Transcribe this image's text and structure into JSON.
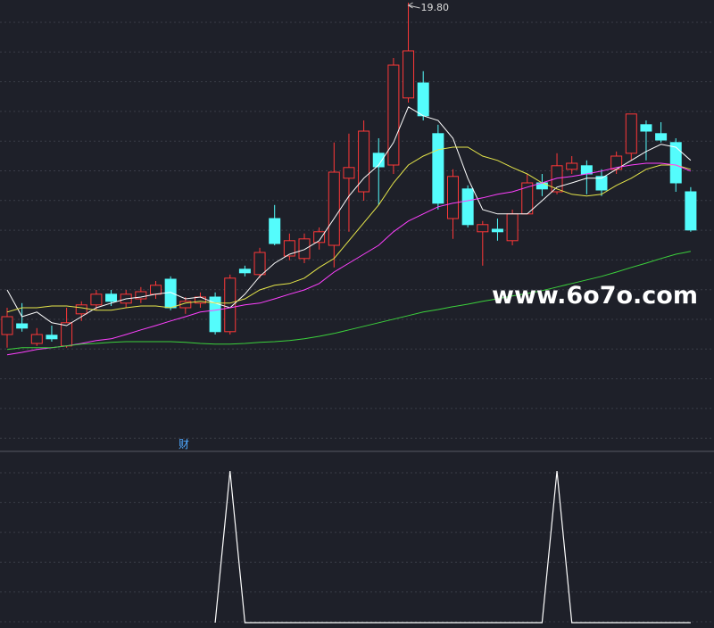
{
  "chart_data": [
    {
      "type": "candlestick",
      "annotation": "19.80",
      "watermark": "www.6o7o.com",
      "marker": "财",
      "up_color": "#ff3838",
      "down_color": "#54fcfc",
      "ylim": [
        7.25,
        19.875
      ],
      "grid": true,
      "open": [
        10.5,
        10.8,
        10.25,
        10.48,
        10.18,
        11.08,
        11.33,
        11.63,
        11.38,
        11.5,
        11.63,
        12.05,
        11.25,
        11.38,
        11.55,
        10.58,
        12.33,
        12.18,
        13.75,
        12.7,
        12.63,
        13.08,
        13.0,
        14.88,
        14.5,
        15.58,
        15.25,
        17.13,
        17.55,
        16.13,
        13.75,
        14.58,
        13.38,
        13.45,
        13.13,
        13.88,
        14.75,
        14.5,
        15.13,
        15.23,
        14.93,
        15.13,
        15.58,
        16.38,
        16.13,
        15.88,
        14.5
      ],
      "high": [
        11.25,
        11.38,
        10.68,
        10.75,
        11.25,
        11.43,
        11.75,
        11.75,
        11.75,
        11.83,
        12.0,
        12.13,
        11.55,
        11.68,
        11.68,
        12.18,
        12.43,
        12.93,
        14.13,
        13.33,
        13.33,
        13.5,
        15.88,
        16.13,
        16.5,
        16.0,
        18.25,
        19.8,
        17.88,
        16.38,
        15.13,
        14.68,
        13.68,
        13.75,
        14.0,
        15.0,
        15.0,
        15.58,
        15.5,
        15.38,
        15.13,
        15.63,
        16.68,
        16.5,
        16.45,
        16.0,
        14.63
      ],
      "low": [
        10.13,
        10.58,
        10.18,
        10.3,
        10.13,
        10.88,
        11.18,
        11.3,
        11.25,
        11.38,
        11.5,
        11.18,
        11.08,
        11.25,
        10.5,
        10.5,
        12.13,
        12.08,
        13.0,
        12.58,
        12.5,
        12.88,
        12.38,
        13.38,
        14.25,
        14.13,
        15.0,
        17.0,
        16.5,
        14.0,
        13.18,
        13.5,
        12.43,
        13.13,
        13.0,
        13.88,
        14.38,
        14.43,
        15.0,
        14.43,
        14.38,
        15.0,
        15.38,
        15.38,
        15.88,
        14.5,
        13.38
      ],
      "close": [
        11.0,
        10.68,
        10.5,
        10.38,
        10.83,
        11.33,
        11.63,
        11.43,
        11.63,
        11.7,
        11.88,
        11.25,
        11.43,
        11.55,
        10.58,
        12.08,
        12.23,
        12.8,
        13.05,
        13.13,
        13.18,
        13.38,
        15.05,
        15.18,
        16.2,
        15.2,
        18.05,
        18.45,
        16.63,
        14.18,
        14.93,
        13.58,
        13.58,
        13.38,
        13.88,
        14.75,
        14.58,
        15.23,
        15.3,
        15.0,
        14.55,
        15.5,
        16.68,
        16.2,
        15.95,
        14.75,
        13.43
      ],
      "series": [
        {
          "color": "#ffffff",
          "values": [
            11.75,
            11.0,
            11.13,
            10.83,
            10.75,
            11.0,
            11.25,
            11.38,
            11.5,
            11.55,
            11.63,
            11.68,
            11.5,
            11.55,
            11.38,
            11.25,
            11.63,
            12.13,
            12.5,
            12.75,
            12.88,
            13.13,
            13.75,
            14.38,
            14.88,
            15.25,
            15.88,
            16.88,
            16.63,
            16.5,
            16.0,
            14.88,
            14.0,
            13.88,
            13.88,
            13.88,
            14.25,
            14.63,
            14.75,
            14.88,
            14.88,
            15.13,
            15.38,
            15.63,
            15.83,
            15.75,
            15.38
          ]
        },
        {
          "color": "#e6e64a",
          "values": [
            11.13,
            11.25,
            11.25,
            11.3,
            11.3,
            11.25,
            11.18,
            11.18,
            11.25,
            11.3,
            11.3,
            11.25,
            11.38,
            11.43,
            11.38,
            11.38,
            11.5,
            11.75,
            11.88,
            11.93,
            12.08,
            12.38,
            12.63,
            13.13,
            13.63,
            14.13,
            14.75,
            15.25,
            15.5,
            15.68,
            15.75,
            15.75,
            15.5,
            15.38,
            15.18,
            15.0,
            14.75,
            14.58,
            14.43,
            14.38,
            14.43,
            14.68,
            14.88,
            15.13,
            15.25,
            15.25,
            15.13
          ]
        },
        {
          "color": "#ff40ff",
          "values": [
            9.93,
            10.0,
            10.08,
            10.13,
            10.18,
            10.25,
            10.33,
            10.38,
            10.5,
            10.63,
            10.75,
            10.88,
            11.0,
            11.13,
            11.18,
            11.25,
            11.33,
            11.38,
            11.5,
            11.63,
            11.75,
            11.93,
            12.25,
            12.5,
            12.75,
            13.0,
            13.38,
            13.68,
            13.88,
            14.08,
            14.18,
            14.25,
            14.33,
            14.43,
            14.5,
            14.63,
            14.75,
            14.88,
            14.93,
            15.0,
            15.08,
            15.18,
            15.25,
            15.3,
            15.3,
            15.25,
            15.08
          ]
        },
        {
          "color": "#3cd23c",
          "values": [
            10.08,
            10.13,
            10.13,
            10.13,
            10.18,
            10.23,
            10.25,
            10.28,
            10.3,
            10.3,
            10.3,
            10.3,
            10.28,
            10.25,
            10.23,
            10.23,
            10.25,
            10.28,
            10.3,
            10.33,
            10.38,
            10.45,
            10.53,
            10.63,
            10.73,
            10.83,
            10.93,
            11.03,
            11.13,
            11.2,
            11.28,
            11.35,
            11.43,
            11.5,
            11.58,
            11.65,
            11.73,
            11.83,
            11.93,
            12.03,
            12.13,
            12.25,
            12.38,
            12.5,
            12.63,
            12.75,
            12.83
          ]
        }
      ]
    },
    {
      "type": "line",
      "ylim": [
        0,
        1
      ],
      "grid": true,
      "color": "#ffffff",
      "values": [
        null,
        null,
        null,
        null,
        null,
        null,
        null,
        null,
        null,
        null,
        null,
        null,
        null,
        null,
        0,
        1,
        0,
        0,
        0,
        0,
        0,
        0,
        0,
        0,
        0,
        0,
        0,
        0,
        0,
        0,
        0,
        0,
        0,
        0,
        0,
        0,
        0,
        1,
        0,
        0,
        0,
        0,
        0,
        0,
        0,
        0,
        0
      ]
    }
  ]
}
